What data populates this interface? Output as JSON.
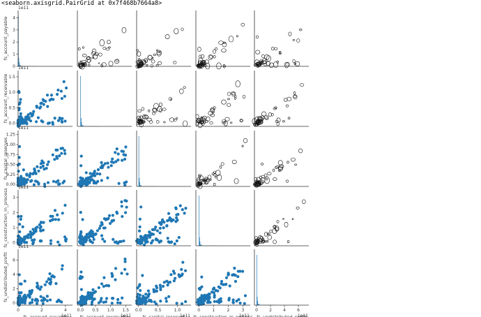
{
  "output_repr": "<seaborn.axisgrid.PairGrid at 0x7f468b7664a8>",
  "colors": {
    "point": "#1f77b4",
    "kde": "#111111",
    "axis": "#333333"
  },
  "chart_data": {
    "type": "pairgrid",
    "title": "",
    "diag_kind": "hist",
    "upper_kind": "kde",
    "lower_kind": "scatter",
    "variables": [
      {
        "name": "fs_account_payable",
        "range": [
          0,
          4.6
        ],
        "exponent": "1e11",
        "x_ticks": [
          {
            "v": 0,
            "t": "0"
          },
          {
            "v": 2,
            "t": "2"
          },
          {
            "v": 4,
            "t": "4"
          }
        ],
        "y_ticks": [
          {
            "v": 0,
            "t": "0"
          },
          {
            "v": 1,
            "t": "1"
          },
          {
            "v": 2,
            "t": "2"
          },
          {
            "v": 3,
            "t": "3"
          },
          {
            "v": 4,
            "t": "4"
          }
        ]
      },
      {
        "name": "fs_account_receivable",
        "range": [
          -0.1,
          1.7
        ],
        "exponent": "1e11",
        "x_ticks": [
          {
            "v": 0,
            "t": "0.0"
          },
          {
            "v": 0.5,
            "t": "0.5"
          },
          {
            "v": 1.0,
            "t": "1.0"
          },
          {
            "v": 1.5,
            "t": "1.5"
          }
        ],
        "y_ticks": [
          {
            "v": 0,
            "t": "0.0"
          },
          {
            "v": 0.5,
            "t": "0.5"
          },
          {
            "v": 1.0,
            "t": "1.0"
          },
          {
            "v": 1.5,
            "t": "1.5"
          }
        ]
      },
      {
        "name": "fs_capital_reserves",
        "range": [
          -0.05,
          1.35
        ],
        "exponent": "1e11",
        "x_ticks": [
          {
            "v": 0,
            "t": "0.0"
          },
          {
            "v": 0.5,
            "t": "0.5"
          },
          {
            "v": 1.0,
            "t": "1.0"
          }
        ],
        "y_ticks": [
          {
            "v": 0,
            "t": "0.00"
          },
          {
            "v": 0.25,
            "t": "0.25"
          },
          {
            "v": 0.5,
            "t": "0.50"
          },
          {
            "v": 0.75,
            "t": "0.75"
          },
          {
            "v": 1.0,
            "t": "1.00"
          },
          {
            "v": 1.25,
            "t": "1.25"
          }
        ]
      },
      {
        "name": "fs_construction_in_process",
        "range": [
          -0.2,
          3.5
        ],
        "exponent": "1e11",
        "x_ticks": [
          {
            "v": 0,
            "t": "0"
          },
          {
            "v": 1,
            "t": "1"
          },
          {
            "v": 2,
            "t": "2"
          },
          {
            "v": 3,
            "t": "3"
          }
        ],
        "y_ticks": [
          {
            "v": 0,
            "t": "0"
          },
          {
            "v": 1,
            "t": "1"
          },
          {
            "v": 2,
            "t": "2"
          },
          {
            "v": 3,
            "t": "3"
          }
        ]
      },
      {
        "name": "fs_undistributed_profit",
        "range": [
          -0.3,
          7.5
        ],
        "exponent": "1e11",
        "x_ticks": [
          {
            "v": 0,
            "t": "0"
          },
          {
            "v": 2,
            "t": "2"
          },
          {
            "v": 4,
            "t": "4"
          },
          {
            "v": 6,
            "t": "6"
          }
        ],
        "y_ticks": [
          {
            "v": 0,
            "t": "0"
          },
          {
            "v": 2,
            "t": "2"
          },
          {
            "v": 4,
            "t": "4"
          },
          {
            "v": 6,
            "t": "6"
          }
        ]
      }
    ]
  }
}
